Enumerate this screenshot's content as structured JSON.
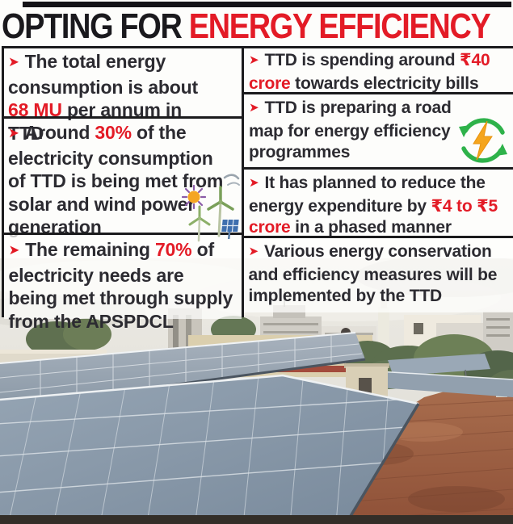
{
  "bullet_glyph": "➤",
  "title": {
    "prefix": "OPTING FOR ",
    "highlight": "ENERGY EFFICIENCY"
  },
  "colors": {
    "red": "#e31b26",
    "ink": "#2c2b31",
    "title_ink": "#1a191d",
    "line": "#1b1b1d",
    "paper": "#fdfdfb"
  },
  "left_column": {
    "items": [
      {
        "segments": [
          {
            "text": "The total energy consumption is about "
          },
          {
            "text": "68 MU",
            "red": true
          },
          {
            "text": " per annum in TTD"
          }
        ]
      },
      {
        "icon": "sun-wind-turbines-solar-panel",
        "segments": [
          {
            "text": "Around "
          },
          {
            "text": "30%",
            "red": true
          },
          {
            "text": " of the electricity consumption of TTD is being met from solar and wind power generation"
          }
        ]
      },
      {
        "segments": [
          {
            "text": "The remaining "
          },
          {
            "text": "70%",
            "red": true
          },
          {
            "text": " of electricity needs are being met through supply from the APSPDCL"
          }
        ]
      }
    ]
  },
  "right_column": {
    "items": [
      {
        "segments": [
          {
            "text": "TTD is spending around "
          },
          {
            "text": "₹40 crore",
            "red": true
          },
          {
            "text": " towards electricity bills"
          }
        ]
      },
      {
        "icon": "recycle-arrows-lightning-bolt",
        "segments": [
          {
            "text": "TTD is preparing a road map for energy efficiency programmes"
          }
        ]
      },
      {
        "segments": [
          {
            "text": "It has planned to reduce the energy expenditure by "
          },
          {
            "text": "₹4 to ₹5 crore",
            "red": true
          },
          {
            "text": " in a phased manner"
          }
        ]
      },
      {
        "segments": [
          {
            "text": "Various energy conservation and efficiency measures will be implemented by the TTD"
          }
        ]
      }
    ]
  },
  "photo": {
    "alt": "rooftop solar panel arrays with city buildings, trees and cloudy sky"
  }
}
